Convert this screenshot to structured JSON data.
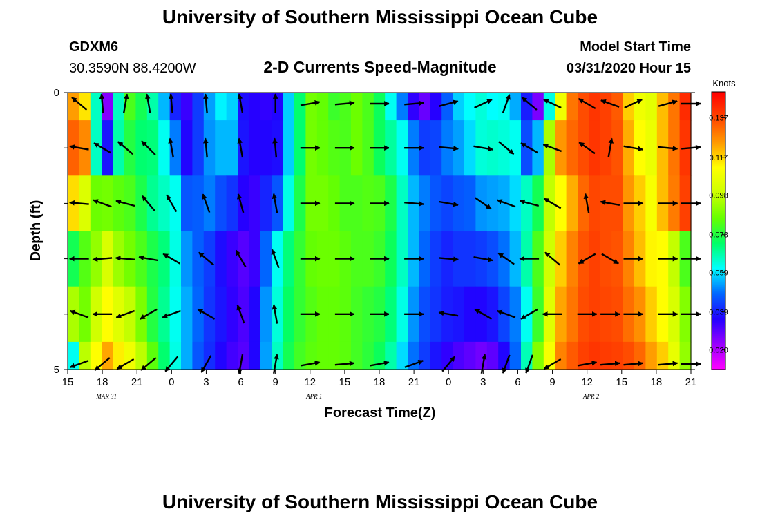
{
  "header": {
    "title": "University of Southern Mississippi Ocean Cube",
    "station_id": "GDXM6",
    "station_coords": "30.3590N 88.4200W",
    "plot_title": "2-D Currents Speed-Magnitude",
    "model_label": "Model Start Time",
    "model_time": "03/31/2020 Hour 15"
  },
  "footer": {
    "title": "University of Southern Mississippi Ocean Cube"
  },
  "colors": {
    "arrow": "#000000",
    "axis": "#000000",
    "colormap": [
      "#ff00ff",
      "#9900ff",
      "#2200ff",
      "#0066ff",
      "#00ffff",
      "#00ff66",
      "#66ff00",
      "#ccff00",
      "#ffff00",
      "#ff9900",
      "#ff4400",
      "#ff0000"
    ]
  },
  "chart_data": {
    "type": "heatmap",
    "xlabel": "Forecast Time(Z)",
    "ylabel": "Depth (ft)",
    "x_start_hour": 15,
    "x_end_hour": 69,
    "x_tick_labels": [
      "15",
      "18",
      "21",
      "0",
      "3",
      "6",
      "9",
      "12",
      "15",
      "18",
      "21",
      "0",
      "3",
      "6",
      "9",
      "12",
      "15",
      "18",
      "21"
    ],
    "date_labels": [
      {
        "hour": 18,
        "text": "MAR  31"
      },
      {
        "hour": 36,
        "text": "APR  1"
      },
      {
        "hour": 60,
        "text": "APR  2"
      }
    ],
    "y_tick_labels": [
      "0",
      "5"
    ],
    "ylim": [
      0,
      5
    ],
    "depth_layers": 5,
    "colorbar": {
      "units": "Knots",
      "min": 0.01,
      "max": 0.15,
      "tick_labels": [
        "0.137",
        "0.117",
        "0.098",
        "0.078",
        "0.059",
        "0.039",
        "0.020"
      ]
    },
    "speed_grid_knots": [
      [
        0.124,
        0.115,
        0.066,
        0.025,
        0.066,
        0.083,
        0.076,
        0.068,
        0.055,
        0.04,
        0.033,
        0.043,
        0.053,
        0.06,
        0.057,
        0.037,
        0.035,
        0.034,
        0.036,
        0.057,
        0.073,
        0.088,
        0.086,
        0.081,
        0.083,
        0.087,
        0.083,
        0.075,
        0.062,
        0.05,
        0.034,
        0.028,
        0.035,
        0.047,
        0.057,
        0.061,
        0.064,
        0.061,
        0.062,
        0.054,
        0.039,
        0.026,
        0.063,
        0.108,
        0.13,
        0.136,
        0.14,
        0.138,
        0.134,
        0.118,
        0.108,
        0.105,
        0.12,
        0.13,
        0.142
      ],
      [
        0.133,
        0.127,
        0.066,
        0.038,
        0.068,
        0.078,
        0.073,
        0.072,
        0.062,
        0.05,
        0.036,
        0.043,
        0.052,
        0.055,
        0.055,
        0.038,
        0.035,
        0.036,
        0.037,
        0.057,
        0.073,
        0.088,
        0.086,
        0.084,
        0.083,
        0.087,
        0.083,
        0.075,
        0.069,
        0.062,
        0.05,
        0.043,
        0.044,
        0.05,
        0.053,
        0.058,
        0.064,
        0.065,
        0.064,
        0.062,
        0.045,
        0.055,
        0.095,
        0.125,
        0.132,
        0.136,
        0.14,
        0.138,
        0.135,
        0.122,
        0.112,
        0.107,
        0.12,
        0.13,
        0.14
      ],
      [
        0.116,
        0.103,
        0.087,
        0.088,
        0.085,
        0.083,
        0.077,
        0.07,
        0.066,
        0.062,
        0.046,
        0.047,
        0.05,
        0.045,
        0.042,
        0.035,
        0.033,
        0.04,
        0.046,
        0.063,
        0.077,
        0.088,
        0.088,
        0.086,
        0.083,
        0.083,
        0.084,
        0.083,
        0.077,
        0.066,
        0.055,
        0.05,
        0.046,
        0.044,
        0.046,
        0.047,
        0.052,
        0.053,
        0.054,
        0.058,
        0.066,
        0.076,
        0.098,
        0.112,
        0.122,
        0.132,
        0.137,
        0.136,
        0.136,
        0.125,
        0.118,
        0.11,
        0.12,
        0.129,
        0.138
      ],
      [
        0.076,
        0.084,
        0.092,
        0.102,
        0.093,
        0.088,
        0.083,
        0.077,
        0.072,
        0.063,
        0.052,
        0.047,
        0.043,
        0.037,
        0.033,
        0.03,
        0.033,
        0.048,
        0.062,
        0.072,
        0.08,
        0.086,
        0.087,
        0.087,
        0.085,
        0.083,
        0.083,
        0.081,
        0.075,
        0.066,
        0.055,
        0.048,
        0.043,
        0.04,
        0.042,
        0.042,
        0.043,
        0.045,
        0.049,
        0.055,
        0.068,
        0.083,
        0.1,
        0.118,
        0.128,
        0.135,
        0.138,
        0.136,
        0.135,
        0.128,
        0.12,
        0.113,
        0.112,
        0.098,
        0.083
      ],
      [
        0.095,
        0.088,
        0.1,
        0.112,
        0.104,
        0.098,
        0.089,
        0.078,
        0.07,
        0.062,
        0.054,
        0.048,
        0.042,
        0.038,
        0.034,
        0.031,
        0.036,
        0.052,
        0.064,
        0.074,
        0.08,
        0.084,
        0.086,
        0.086,
        0.085,
        0.082,
        0.08,
        0.078,
        0.072,
        0.063,
        0.052,
        0.045,
        0.042,
        0.039,
        0.038,
        0.036,
        0.036,
        0.038,
        0.044,
        0.05,
        0.062,
        0.081,
        0.104,
        0.123,
        0.13,
        0.136,
        0.138,
        0.137,
        0.136,
        0.131,
        0.126,
        0.118,
        0.112,
        0.102,
        0.09
      ],
      [
        0.062,
        0.097,
        0.112,
        0.123,
        0.114,
        0.108,
        0.097,
        0.085,
        0.073,
        0.063,
        0.054,
        0.046,
        0.041,
        0.036,
        0.032,
        0.03,
        0.036,
        0.053,
        0.066,
        0.076,
        0.082,
        0.085,
        0.086,
        0.086,
        0.085,
        0.082,
        0.079,
        0.075,
        0.068,
        0.058,
        0.049,
        0.043,
        0.038,
        0.034,
        0.031,
        0.029,
        0.027,
        0.029,
        0.036,
        0.048,
        0.067,
        0.09,
        0.11,
        0.128,
        0.134,
        0.138,
        0.14,
        0.139,
        0.138,
        0.136,
        0.132,
        0.124,
        0.118,
        0.106,
        0.092
      ]
    ],
    "vector_hours": [
      16,
      18,
      20,
      22,
      24,
      27,
      30,
      33,
      36,
      39,
      42,
      45,
      48,
      51,
      53,
      55,
      57,
      60,
      62,
      64,
      67,
      69
    ],
    "vector_depths": [
      0.2,
      1.0,
      2.0,
      3.0,
      4.0,
      4.9
    ],
    "vector_angles_deg": [
      [
        -140,
        -95,
        -80,
        -100,
        -95,
        -95,
        -100,
        -90,
        -10,
        -5,
        0,
        -5,
        -15,
        -25,
        -70,
        -140,
        -155,
        -150,
        -160,
        -25,
        -15,
        0
      ],
      [
        -170,
        -150,
        -140,
        -135,
        -100,
        -95,
        -100,
        -95,
        0,
        0,
        0,
        0,
        5,
        10,
        40,
        -150,
        -160,
        -145,
        -80,
        10,
        5,
        -5
      ],
      [
        -175,
        -160,
        -165,
        -130,
        -120,
        -110,
        -105,
        -100,
        0,
        0,
        0,
        5,
        10,
        35,
        -160,
        -165,
        -150,
        -100,
        -170,
        0,
        0,
        0
      ],
      [
        -180,
        -185,
        -175,
        -170,
        -150,
        -140,
        -120,
        -110,
        0,
        0,
        0,
        0,
        5,
        10,
        -145,
        -180,
        -140,
        -210,
        30,
        0,
        0,
        0
      ],
      [
        -160,
        -180,
        -200,
        -210,
        -200,
        -150,
        -110,
        -100,
        0,
        0,
        0,
        0,
        -170,
        -150,
        -160,
        -210,
        -180,
        0,
        0,
        0,
        0,
        0
      ],
      [
        -200,
        -220,
        -210,
        -220,
        -230,
        -240,
        -260,
        -80,
        -10,
        -5,
        -10,
        -20,
        -50,
        -80,
        -250,
        -250,
        -210,
        -10,
        -5,
        -5,
        -5,
        0
      ]
    ]
  }
}
